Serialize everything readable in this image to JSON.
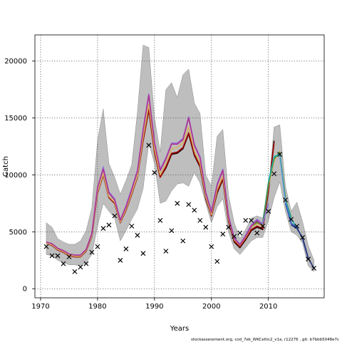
{
  "chart_data": {
    "type": "line",
    "title": "",
    "xlabel": "Years",
    "ylabel": "Catch",
    "xlim": [
      1969,
      2019.8
    ],
    "ylim": [
      -800,
      22300
    ],
    "xticks": [
      1970,
      1980,
      1990,
      2000,
      2010
    ],
    "yticks": [
      0,
      5000,
      10000,
      15000,
      20000
    ],
    "grid": true,
    "footer": "stockassessment.org, cod_7ek_WKCeltic2_v1a, r12276 , git: b7bbb5048e7c",
    "band": {
      "name": "confidence interval",
      "color": "#bebebe",
      "x": [
        1971,
        1972,
        1973,
        1974,
        1975,
        1976,
        1977,
        1978,
        1979,
        1980,
        1981,
        1982,
        1983,
        1984,
        1985,
        1986,
        1987,
        1988,
        1989,
        1990,
        1991,
        1992,
        1993,
        1994,
        1995,
        1996,
        1997,
        1998,
        1999,
        2000,
        2001,
        2002,
        2003,
        2004,
        2005,
        2006,
        2007,
        2008,
        2009,
        2010,
        2011,
        2012,
        2013,
        2014,
        2015,
        2016,
        2017,
        2018
      ],
      "lower": [
        3000,
        2900,
        2500,
        2300,
        2100,
        2100,
        2000,
        2300,
        3000,
        5500,
        7500,
        6800,
        6200,
        4200,
        5100,
        6100,
        7000,
        8800,
        12800,
        11000,
        7500,
        7700,
        8600,
        9200,
        9300,
        9000,
        10200,
        9300,
        7500,
        5800,
        7200,
        7900,
        5000,
        3500,
        3000,
        3600,
        4200,
        4500,
        4500,
        6000,
        8000,
        9400,
        6800,
        5000,
        4700,
        4000,
        2000,
        1500
      ],
      "upper": [
        5800,
        5400,
        4400,
        4100,
        3900,
        3900,
        4200,
        5100,
        7100,
        13000,
        15800,
        11000,
        9800,
        8300,
        9500,
        10900,
        15500,
        21400,
        21200,
        15000,
        12000,
        17500,
        18100,
        16800,
        18800,
        19300,
        16300,
        15400,
        10000,
        9000,
        13400,
        14000,
        8200,
        5800,
        4400,
        5200,
        6200,
        6400,
        6200,
        8500,
        14200,
        14400,
        9000,
        6800,
        7600,
        5900,
        3800,
        2500
      ]
    },
    "series": [
      {
        "color": "#2a0000",
        "x": [
          1971,
          1972,
          1973,
          1974,
          1975,
          1976,
          1977,
          1978,
          1979,
          1980,
          1981,
          1982,
          1983,
          1984,
          1985,
          1986,
          1987,
          1988,
          1989,
          1990,
          1991,
          1992,
          1993,
          1994,
          1995,
          1996,
          1997,
          1998,
          1999,
          2000,
          2001,
          2002,
          2003,
          2004,
          2005,
          2006,
          2007,
          2008,
          2009,
          2010,
          2011
        ],
        "y": [
          4000,
          3800,
          3400,
          3200,
          2900,
          2800,
          2800,
          3300,
          4600,
          8400,
          10000,
          8000,
          7500,
          5800,
          6900,
          8300,
          9800,
          13000,
          15700,
          12000,
          9800,
          10600,
          11800,
          11900,
          12300,
          13600,
          11700,
          10700,
          7900,
          6400,
          8400,
          9600,
          5900,
          4100,
          3600,
          4300,
          5100,
          5400,
          5200,
          8500,
          13000
        ]
      },
      {
        "color": "#a00000",
        "x": [
          1971,
          1972,
          1973,
          1974,
          1975,
          1976,
          1977,
          1978,
          1979,
          1980,
          1981,
          1982,
          1983,
          1984,
          1985,
          1986,
          1987,
          1988,
          1989,
          1990,
          1991,
          1992,
          1993,
          1994,
          1995,
          1996,
          1997,
          1998,
          1999,
          2000,
          2001,
          2002,
          2003,
          2004,
          2005,
          2006,
          2007,
          2008,
          2009,
          2010,
          2011
        ],
        "y": [
          4000,
          3800,
          3400,
          3200,
          2900,
          2800,
          2800,
          3300,
          4600,
          8400,
          10000,
          8000,
          7500,
          5800,
          6900,
          8300,
          9800,
          13000,
          15800,
          12000,
          9800,
          10700,
          11900,
          12000,
          12400,
          13700,
          11800,
          10800,
          8000,
          6400,
          8500,
          9700,
          6000,
          4200,
          3700,
          4400,
          5200,
          5500,
          5300,
          8600,
          12800
        ]
      },
      {
        "color": "#d4b060",
        "x": [
          1971,
          1972,
          1973,
          1974,
          1975,
          1976,
          1977,
          1978,
          1979,
          1980,
          1981,
          1982,
          1983,
          1984,
          1985,
          1986,
          1987,
          1988,
          1989,
          1990,
          1991,
          1992,
          1993,
          1994,
          1995,
          1996,
          1997,
          1998,
          1999,
          2000,
          2001,
          2002,
          2003,
          2004,
          2005,
          2006,
          2007,
          2008,
          2009,
          2010,
          2011,
          2012
        ],
        "y": [
          4000,
          3850,
          3450,
          3250,
          2950,
          2850,
          2850,
          3350,
          4650,
          8500,
          10100,
          8100,
          7600,
          5850,
          7000,
          8400,
          9900,
          13300,
          16200,
          12300,
          10000,
          11000,
          12300,
          12400,
          12800,
          14200,
          12100,
          11000,
          8100,
          6500,
          8700,
          9900,
          6100,
          4300,
          3800,
          4500,
          5400,
          5700,
          5500,
          9000,
          11200,
          12100
        ]
      },
      {
        "color": "#6b8e23",
        "x": [
          2006,
          2007,
          2008,
          2009,
          2010,
          2011,
          2012,
          2013
        ],
        "y": [
          4600,
          5500,
          5800,
          5600,
          9200,
          11400,
          12000,
          8000
        ]
      },
      {
        "color": "#2e8b57",
        "x": [
          2007,
          2008,
          2009,
          2010,
          2011,
          2012,
          2013,
          2014
        ],
        "y": [
          5600,
          5900,
          5700,
          9300,
          11500,
          11900,
          7800,
          6300
        ]
      },
      {
        "color": "#20b2aa",
        "x": [
          2010,
          2011,
          2012,
          2013,
          2014,
          2015
        ],
        "y": [
          9400,
          11600,
          11800,
          7700,
          6100,
          5400
        ]
      },
      {
        "color": "#5b9bd5",
        "x": [
          2012,
          2013,
          2014,
          2015,
          2016
        ],
        "y": [
          11700,
          7600,
          5800,
          5300,
          4500
        ]
      },
      {
        "color": "#3355bb",
        "x": [
          2013,
          2014,
          2015,
          2016,
          2017
        ],
        "y": [
          7500,
          5700,
          5400,
          4400,
          2600
        ]
      },
      {
        "color": "#223377",
        "x": [
          2014,
          2015,
          2016,
          2017,
          2018
        ],
        "y": [
          5600,
          5300,
          4500,
          2700,
          1800
        ]
      },
      {
        "color": "#9370db",
        "x": [
          1971,
          1972,
          1973,
          1974,
          1975,
          1976,
          1977,
          1978,
          1979,
          1980,
          1981,
          1982,
          1983,
          1984,
          1985,
          1986,
          1987,
          1988,
          1989,
          1990,
          1991,
          1992,
          1993,
          1994,
          1995,
          1996,
          1997,
          1998,
          1999,
          2000,
          2001,
          2002,
          2003,
          2004,
          2005,
          2006,
          2007,
          2008,
          2009,
          2010
        ],
        "y": [
          4100,
          3950,
          3550,
          3350,
          3050,
          2950,
          2950,
          3450,
          4800,
          8800,
          10700,
          8500,
          7900,
          6050,
          7300,
          8800,
          10400,
          14000,
          17100,
          12900,
          10500,
          11500,
          12800,
          12800,
          13200,
          15100,
          12700,
          11600,
          8500,
          6800,
          9200,
          10500,
          6400,
          4500,
          3900,
          4700,
          5600,
          6100,
          5700,
          7500
        ]
      },
      {
        "color": "#b03090",
        "x": [
          1971,
          1972,
          1973,
          1974,
          1975,
          1976,
          1977,
          1978,
          1979,
          1980,
          1981,
          1982,
          1983,
          1984,
          1985,
          1986,
          1987,
          1988,
          1989,
          1990,
          1991,
          1992,
          1993,
          1994,
          1995,
          1996,
          1997,
          1998,
          1999,
          2000,
          2001,
          2002,
          2003,
          2004,
          2005,
          2006,
          2007,
          2008,
          2009
        ],
        "y": [
          4100,
          3950,
          3550,
          3350,
          3050,
          2950,
          2950,
          3450,
          4850,
          8900,
          10500,
          8400,
          7800,
          6000,
          7200,
          8700,
          10300,
          13900,
          17000,
          12800,
          10400,
          11400,
          12700,
          12700,
          13100,
          15000,
          12600,
          11500,
          8400,
          6700,
          9100,
          10400,
          6300,
          4400,
          3850,
          4600,
          5500,
          6000,
          5500
        ]
      }
    ],
    "observed": {
      "marker": "x",
      "color": "#000000",
      "x": [
        1971,
        1972,
        1973,
        1974,
        1975,
        1976,
        1977,
        1978,
        1979,
        1980,
        1981,
        1982,
        1983,
        1984,
        1985,
        1986,
        1987,
        1988,
        1989,
        1990,
        1991,
        1992,
        1993,
        1994,
        1995,
        1996,
        1997,
        1998,
        1999,
        2000,
        2001,
        2002,
        2003,
        2004,
        2005,
        2006,
        2007,
        2008,
        2009,
        2010,
        2011,
        2012,
        2013,
        2014,
        2015,
        2016,
        2017,
        2018
      ],
      "y": [
        3700,
        2900,
        2900,
        2200,
        2800,
        1500,
        1900,
        2200,
        3200,
        3700,
        5300,
        5600,
        6400,
        2500,
        3500,
        5500,
        4700,
        3100,
        12600,
        10200,
        6000,
        3300,
        5100,
        7500,
        4200,
        7400,
        6900,
        6000,
        5400,
        3700,
        2400,
        4800,
        5400,
        4600,
        4900,
        6000,
        6000,
        4900,
        5500,
        6800,
        10100,
        11800,
        7800,
        6100,
        5500,
        4500,
        2600,
        1800
      ]
    }
  }
}
